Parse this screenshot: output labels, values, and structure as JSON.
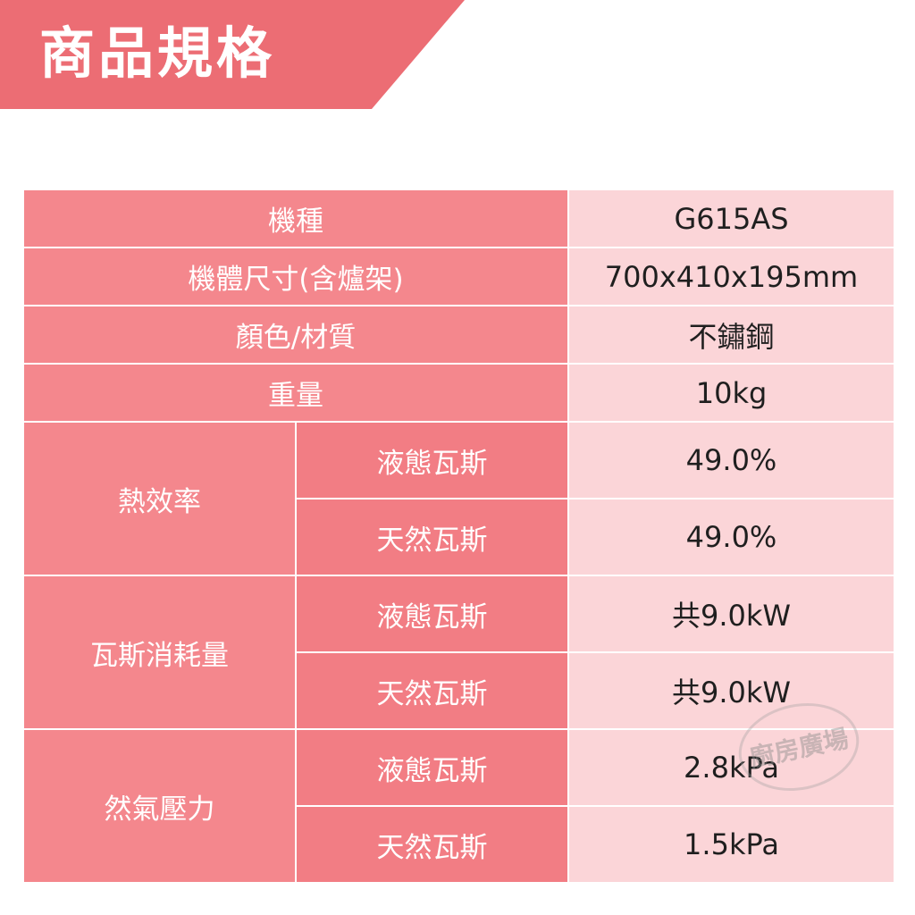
{
  "header": {
    "title": "商品規格"
  },
  "specs": {
    "model": {
      "label": "機種",
      "value": "G615AS"
    },
    "size": {
      "label": "機體尺寸(含爐架)",
      "value": "700x410x195mm"
    },
    "material": {
      "label": "顏色/材質",
      "value": "不鏽鋼"
    },
    "weight": {
      "label": "重量",
      "value": "10kg"
    },
    "efficiency": {
      "label": "熱效率",
      "lpg": {
        "label": "液態瓦斯",
        "value": "49.0%"
      },
      "ng": {
        "label": "天然瓦斯",
        "value": "49.0%"
      }
    },
    "consumption": {
      "label": "瓦斯消耗量",
      "lpg": {
        "label": "液態瓦斯",
        "value": "共9.0kW"
      },
      "ng": {
        "label": "天然瓦斯",
        "value": "共9.0kW"
      }
    },
    "pressure": {
      "label": "然氣壓力",
      "lpg": {
        "label": "液態瓦斯",
        "value": "2.8kPa"
      },
      "ng": {
        "label": "天然瓦斯",
        "value": "1.5kPa"
      }
    }
  },
  "watermark": {
    "text": "廚房廣場"
  },
  "colors": {
    "banner": "#ec6d74",
    "label_cell": "#f4878d",
    "value_cell": "#fbd5d8"
  }
}
